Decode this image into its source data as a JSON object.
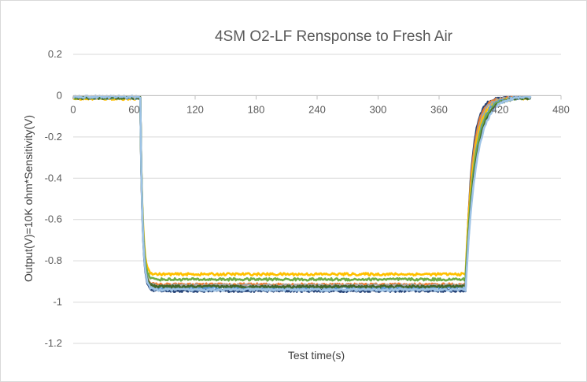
{
  "chart_data": {
    "type": "line",
    "title": "4SM O2-LF Rensponse to Fresh Air",
    "xlabel": "Test time(s)",
    "ylabel": "Output(V)=10K ohm*Sensitivity(V)",
    "xlim": [
      0,
      480
    ],
    "ylim": [
      -1.2,
      0.2
    ],
    "x_ticks": [
      0,
      60,
      120,
      180,
      240,
      300,
      360,
      420,
      480
    ],
    "y_ticks": [
      0.2,
      0,
      -0.2,
      -0.4,
      -0.6,
      -0.8,
      -1,
      -1.2
    ],
    "x_tick_labels": [
      "0",
      "60",
      "120",
      "180",
      "240",
      "300",
      "360",
      "420",
      "480"
    ],
    "y_tick_labels": [
      "0.2",
      "0",
      "-0.2",
      "-0.4",
      "-0.6",
      "-0.8",
      "-1",
      "-1.2"
    ],
    "grid": true,
    "legend": "none",
    "series": [
      {
        "color": "#264478",
        "baseline": -0.01,
        "plateau": -0.945,
        "t_fall": 66,
        "t_rise": 386
      },
      {
        "color": "#ED7D31",
        "baseline": -0.01,
        "plateau": -0.915,
        "t_fall": 66,
        "t_rise": 386
      },
      {
        "color": "#A5A5A5",
        "baseline": -0.01,
        "plateau": -0.92,
        "t_fall": 66,
        "t_rise": 386
      },
      {
        "color": "#FFC000",
        "baseline": -0.015,
        "plateau": -0.865,
        "t_fall": 66,
        "t_rise": 386
      },
      {
        "color": "#5B9BD5",
        "baseline": -0.01,
        "plateau": -0.93,
        "t_fall": 66,
        "t_rise": 386
      },
      {
        "color": "#70AD47",
        "baseline": -0.01,
        "plateau": -0.89,
        "t_fall": 66,
        "t_rise": 386
      },
      {
        "color": "#43682B",
        "baseline": -0.01,
        "plateau": -0.925,
        "t_fall": 66,
        "t_rise": 386
      },
      {
        "color": "#9DC3E6",
        "baseline": -0.005,
        "plateau": -0.94,
        "t_fall": 66,
        "t_rise": 386
      }
    ],
    "x_end": 450
  }
}
